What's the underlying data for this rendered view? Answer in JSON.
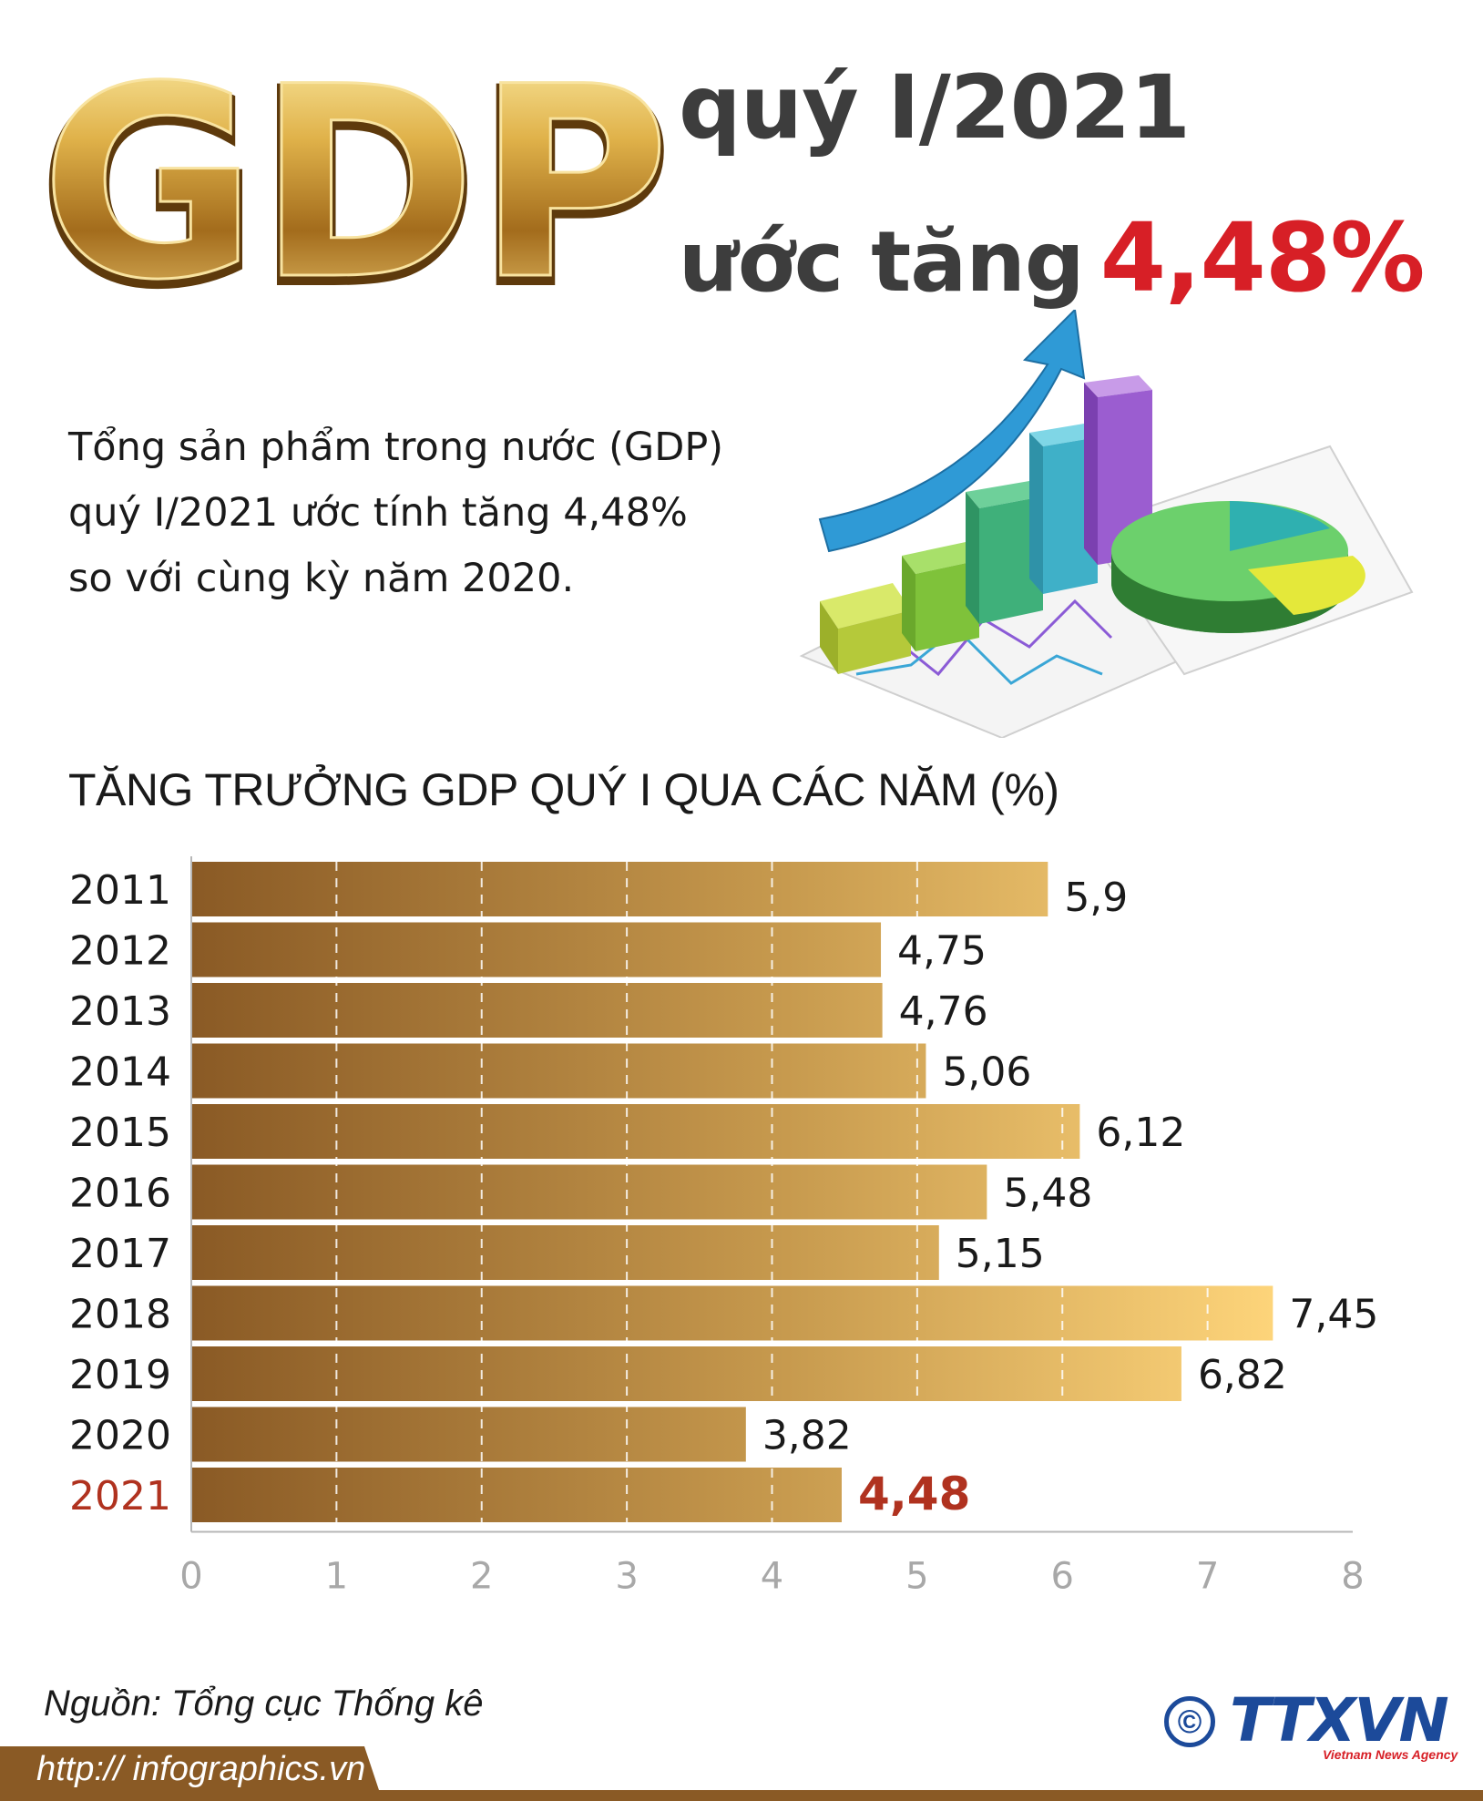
{
  "header": {
    "logo_text": "GDP",
    "title_line1": "quý I/2021",
    "title_line2_prefix": "ước tăng",
    "title_highlight": "4,48%"
  },
  "summary": {
    "line1": "Tổng sản phẩm trong nước (GDP)",
    "line2": "quý I/2021 ước tính tăng 4,48%",
    "line3": "so với cùng kỳ năm 2020."
  },
  "illustration": {
    "icon": "growth-chart-illustration"
  },
  "chart_data": {
    "type": "bar",
    "orientation": "horizontal",
    "title": "TĂNG TRƯỞNG GDP QUÝ I QUA CÁC NĂM (%)",
    "categories": [
      "2011",
      "2012",
      "2013",
      "2014",
      "2015",
      "2016",
      "2017",
      "2018",
      "2019",
      "2020",
      "2021"
    ],
    "values": [
      5.9,
      4.75,
      4.76,
      5.06,
      6.12,
      5.48,
      5.15,
      7.45,
      6.82,
      3.82,
      4.48
    ],
    "value_labels": [
      "5,9",
      "4,75",
      "4,76",
      "5,06",
      "6,12",
      "5,48",
      "5,15",
      "7,45",
      "6,82",
      "3,82",
      "4,48"
    ],
    "highlight_index": 10,
    "xlim": [
      0,
      8
    ],
    "xticks": [
      "0",
      "1",
      "2",
      "3",
      "4",
      "5",
      "6",
      "7",
      "8"
    ],
    "grid": true,
    "colors": {
      "bar_dark": "#8a5a25",
      "bar_light": "#fdd47a",
      "highlight": "#b0321f",
      "axis": "#b7b7b7"
    }
  },
  "footer": {
    "source": "Nguồn: Tổng cục Thống kê",
    "url": "http:// infographics.vn",
    "copyright_symbol": "©",
    "agency": "TTXVN",
    "agency_sub": "Vietnam News Agency",
    "colors": {
      "agency_blue": "#1c4a9a",
      "agency_red": "#d71f26",
      "strip": "#8a5a25"
    }
  }
}
